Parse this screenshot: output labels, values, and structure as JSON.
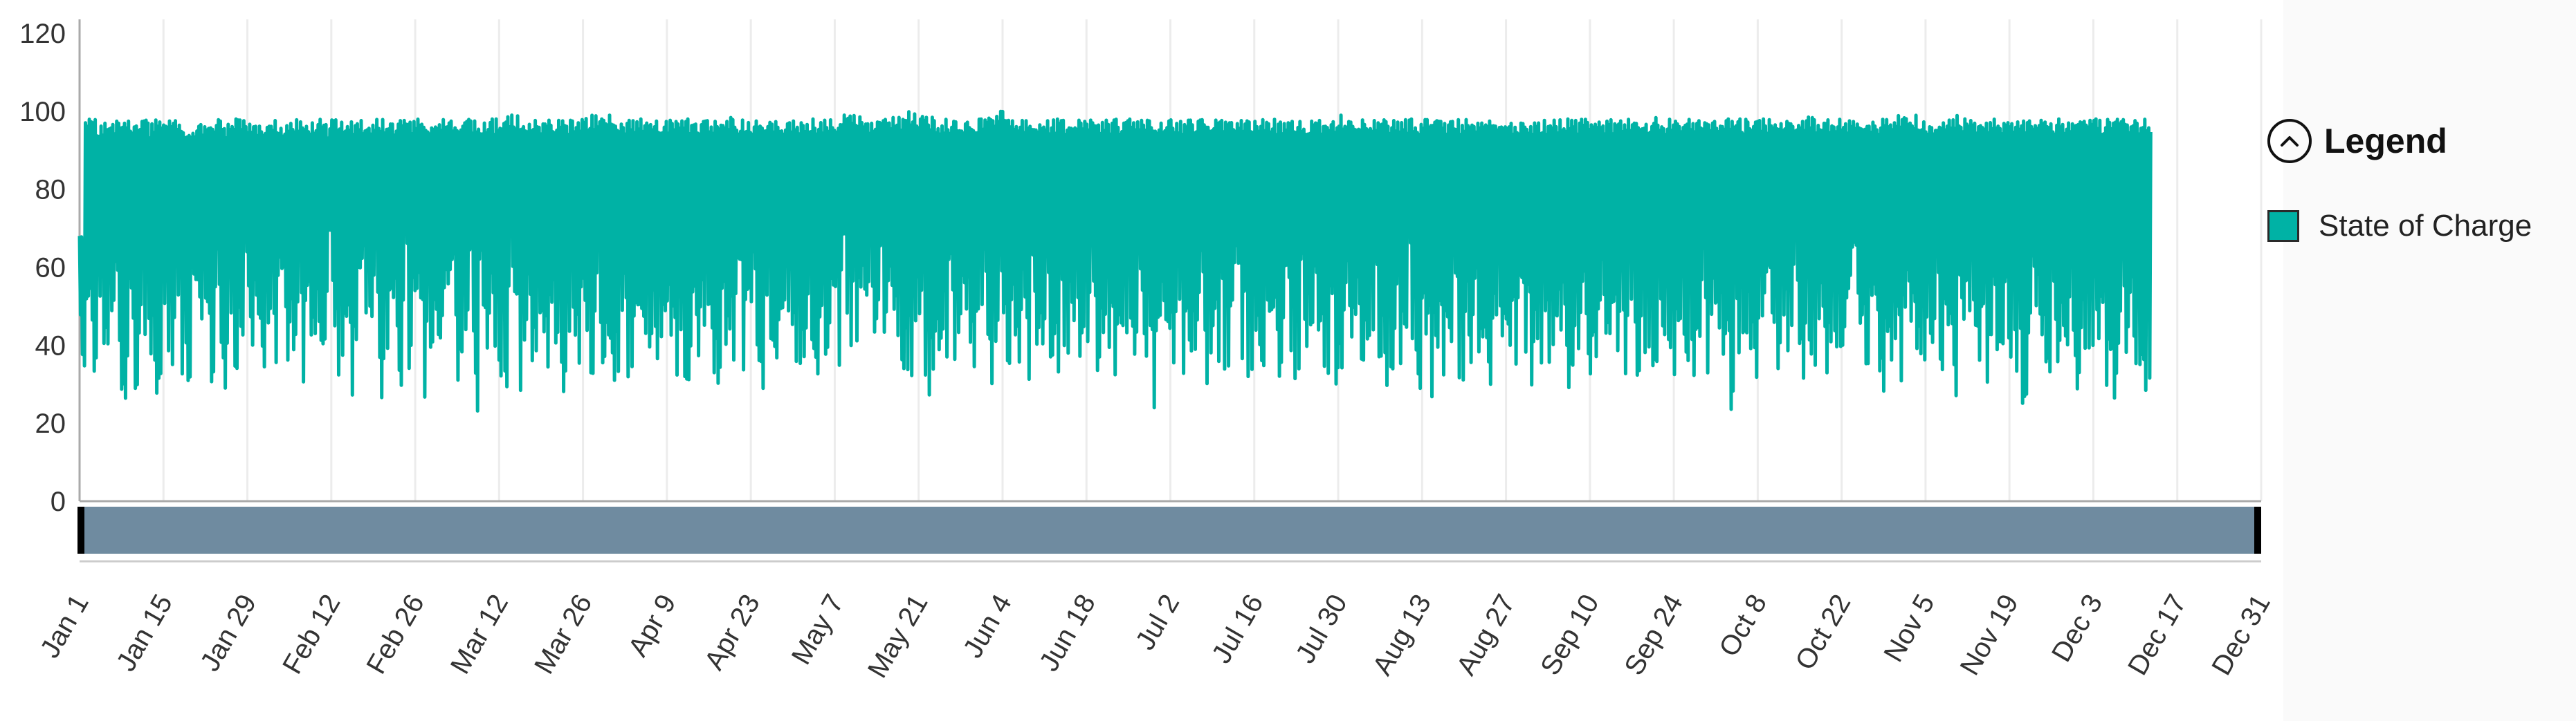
{
  "chart_data": {
    "type": "line",
    "title": "",
    "xlabel": "",
    "ylabel": "",
    "ylim": [
      0,
      120
    ],
    "yticks": [
      0,
      20,
      40,
      60,
      80,
      100,
      120
    ],
    "xticks": [
      "Jan 1",
      "Jan 15",
      "Jan 29",
      "Feb 12",
      "Feb 26",
      "Mar 12",
      "Mar 26",
      "Apr 9",
      "Apr 23",
      "May 7",
      "May 21",
      "Jun 4",
      "Jun 18",
      "Jul 2",
      "Jul 16",
      "Jul 30",
      "Aug 13",
      "Aug 27",
      "Sep 10",
      "Sep 24",
      "Oct 8",
      "Oct 22",
      "Nov 5",
      "Nov 19",
      "Dec 3",
      "Dec 17",
      "Dec 31"
    ],
    "grid": true,
    "legend_position": "right",
    "series": [
      {
        "name": "State of Charge",
        "color": "#00b2a5",
        "x_start": "Jan 1",
        "x_end": "Dec 31",
        "daily_high": [
          68,
          98,
          98,
          97,
          97,
          98,
          98,
          97,
          98,
          98,
          98,
          98,
          97,
          98,
          98,
          98,
          98,
          98,
          97,
          97,
          98,
          97,
          98,
          98,
          98,
          97,
          98,
          98,
          98,
          98,
          97,
          97,
          98,
          98,
          97,
          98,
          98,
          98,
          98,
          98,
          98,
          98,
          97,
          98,
          99,
          98,
          98,
          98,
          98,
          98,
          98,
          98,
          97,
          97,
          98,
          98,
          98,
          98,
          98,
          98,
          98,
          98,
          98,
          98,
          97,
          98,
          98,
          98,
          98,
          98,
          98,
          98,
          98,
          99,
          99,
          98,
          98,
          98,
          98,
          97,
          98,
          98,
          98,
          98,
          98,
          98,
          99,
          99,
          99,
          98,
          99,
          98,
          98,
          98,
          98,
          98,
          98,
          98,
          98,
          98,
          98,
          98,
          98,
          98,
          98,
          98,
          98,
          98,
          98,
          98,
          99,
          99,
          98,
          98,
          98,
          98,
          98,
          98,
          98,
          98,
          98,
          98,
          98,
          98,
          98,
          98,
          98,
          98,
          98,
          98,
          99,
          99,
          99,
          99,
          98,
          98,
          98,
          99,
          99,
          99,
          99,
          100,
          100,
          99,
          99,
          99,
          98,
          98,
          98,
          98,
          98,
          99,
          98,
          98,
          99,
          99,
          99,
          100,
          98,
          98,
          98,
          98,
          98,
          98,
          98,
          98,
          98,
          98,
          98,
          98,
          98,
          98,
          98,
          98,
          98,
          98,
          98,
          98,
          98,
          98,
          98,
          98,
          98,
          98,
          98,
          98,
          98,
          98,
          98,
          98,
          98,
          98,
          98,
          98,
          98,
          98,
          98,
          98,
          98,
          98,
          98,
          98,
          98,
          98,
          98,
          98,
          98,
          98,
          98,
          98,
          98,
          98,
          98,
          98,
          98,
          99,
          99,
          98,
          98,
          98,
          98,
          98,
          98,
          98,
          98,
          98,
          98,
          98,
          98,
          98,
          98,
          98,
          98,
          98,
          98,
          98,
          98,
          98,
          98,
          98,
          98,
          98,
          98,
          98,
          98,
          98,
          98,
          98,
          98,
          98,
          98,
          98,
          98,
          98,
          98,
          98,
          98,
          98,
          98,
          98,
          98,
          98,
          98,
          98,
          98,
          98,
          98,
          98,
          99,
          99,
          98,
          98,
          98,
          98,
          98,
          98,
          98,
          98,
          98,
          98,
          98,
          98,
          98,
          98,
          98,
          98,
          98,
          98,
          98,
          98,
          98,
          98,
          98,
          98,
          99,
          99,
          98,
          98,
          98,
          98,
          98,
          98,
          98,
          98,
          98,
          98,
          98,
          98,
          98,
          99,
          99,
          99,
          99,
          99,
          98,
          98,
          98,
          98,
          98,
          99,
          99,
          98,
          98,
          98,
          98,
          98,
          98,
          98,
          98,
          98,
          98,
          98,
          98,
          98,
          98,
          98,
          98,
          98,
          98,
          98,
          98,
          98,
          98,
          98,
          98,
          98,
          98,
          98,
          98,
          98,
          98,
          98,
          98,
          98,
          98,
          98,
          98,
          98,
          98,
          98,
          98,
          98,
          98,
          98,
          98,
          98,
          98,
          98,
          98,
          98,
          98,
          96
        ],
        "daily_low": [
          22,
          38,
          24,
          42,
          28,
          30,
          34,
          26,
          32,
          28,
          40,
          30,
          36,
          26,
          34,
          28,
          38,
          30,
          24,
          36,
          32,
          44,
          28,
          38,
          26,
          40,
          30,
          22,
          46,
          32,
          38,
          28,
          42,
          30,
          36,
          34,
          26,
          44,
          30,
          38,
          28,
          32,
          42,
          36,
          30,
          40,
          26,
          34,
          44,
          32,
          38,
          24,
          36,
          30,
          28,
          42,
          34,
          40,
          26,
          38,
          32,
          30,
          36,
          44,
          28,
          34,
          40,
          22,
          38,
          30,
          36,
          32,
          26,
          42,
          34,
          28,
          40,
          30,
          38,
          24,
          36,
          32,
          28,
          40,
          34,
          30,
          38,
          26,
          42,
          32,
          36,
          30,
          40,
          28,
          34,
          38,
          42,
          30,
          36,
          28,
          40,
          32,
          34,
          26,
          38,
          30,
          42,
          36,
          28,
          34,
          40,
          30,
          38,
          32,
          44,
          36,
          28,
          40,
          34,
          30,
          38,
          42,
          32,
          36,
          40,
          30,
          44,
          28,
          38,
          34,
          42,
          36,
          40,
          38,
          44,
          32,
          40,
          36,
          42,
          38,
          34,
          28,
          40,
          36,
          22,
          32,
          38,
          30,
          36,
          28,
          40,
          34,
          30,
          38,
          42,
          28,
          36,
          32,
          30,
          38,
          34,
          26,
          40,
          30,
          36,
          32,
          28,
          38,
          34,
          42,
          30,
          36,
          40,
          26,
          32,
          38,
          30,
          34,
          36,
          28,
          40,
          32,
          38,
          22,
          36,
          30,
          34,
          40,
          28,
          36,
          32,
          38,
          30,
          42,
          34,
          28,
          36,
          40,
          32,
          30,
          38,
          26,
          34,
          40,
          30,
          36,
          32,
          24,
          38,
          30,
          34,
          40,
          28,
          36,
          22,
          32,
          38,
          30,
          34,
          28,
          40,
          36,
          26,
          32,
          38,
          30,
          42,
          34,
          28,
          36,
          24,
          38,
          30,
          34,
          40,
          28,
          36,
          32,
          38,
          30,
          26,
          42,
          34,
          36,
          30,
          40,
          32,
          28,
          38,
          34,
          30,
          36,
          40,
          28,
          32,
          38,
          34,
          30,
          26,
          40,
          36,
          32,
          38,
          30,
          42,
          28,
          34,
          36,
          30,
          38,
          40,
          32,
          28,
          36,
          34,
          30,
          38,
          26,
          40,
          32,
          36,
          22,
          34,
          38,
          30,
          28,
          40,
          36,
          32,
          34,
          38,
          30,
          42,
          28,
          36,
          34,
          40,
          30,
          38,
          32,
          28,
          36,
          40,
          34,
          30,
          38,
          32,
          24,
          36,
          40,
          30,
          34,
          38,
          28,
          32,
          36,
          40,
          30,
          34,
          26,
          38,
          32,
          36,
          30,
          40,
          28,
          34,
          38,
          36,
          30,
          32,
          24,
          40,
          34,
          38,
          28,
          36,
          30,
          32,
          40,
          26,
          34,
          38,
          30,
          36,
          28,
          24,
          32,
          38,
          36,
          30,
          34,
          28
        ]
      }
    ]
  },
  "legend": {
    "title": "Legend",
    "items": [
      {
        "label": "State of Charge",
        "color": "#00b2a5"
      }
    ]
  },
  "navigator": {
    "fill": "#6f8ba0"
  }
}
